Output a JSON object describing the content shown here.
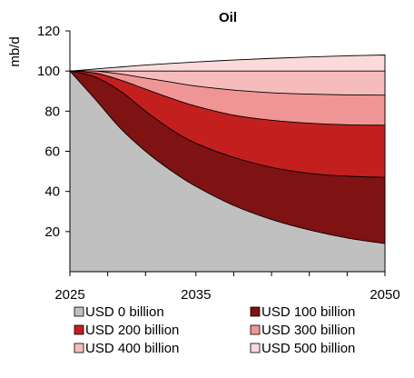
{
  "chart_data": {
    "type": "area",
    "title": "Oil",
    "ylabel": "mb/d",
    "xlabel": "",
    "x_ticks": [
      2025,
      2035,
      2050
    ],
    "x_minor_ticks": [
      2028,
      2031,
      2038,
      2041,
      2044,
      2047
    ],
    "xlim": [
      2025,
      2050
    ],
    "ylim": [
      0,
      120
    ],
    "y_ticks": [
      20,
      40,
      60,
      80,
      100,
      120
    ],
    "grid": false,
    "legend_placement": "bottom",
    "x": [
      2025,
      2027,
      2029,
      2031,
      2033,
      2035,
      2038,
      2041,
      2044,
      2047,
      2050
    ],
    "series": [
      {
        "name": "USD 0 billion",
        "color": "#c0c0c0",
        "values": [
          100,
          86,
          71.5,
          60,
          50.5,
          42.5,
          33,
          26,
          20.8,
          16.8,
          14
        ]
      },
      {
        "name": "USD 100 billion",
        "color": "#7f1313",
        "values": [
          100,
          97,
          90,
          80,
          71,
          64,
          57,
          52,
          49,
          47.6,
          47
        ]
      },
      {
        "name": "USD 200 billion",
        "color": "#c41f1f",
        "values": [
          100,
          99,
          95.5,
          91,
          86.5,
          82.5,
          78,
          75.5,
          74,
          73.2,
          73
        ]
      },
      {
        "name": "USD 300 billion",
        "color": "#f09595",
        "values": [
          100,
          100,
          98.5,
          96.5,
          94.5,
          92.5,
          90.5,
          89.2,
          88.5,
          88.1,
          88
        ]
      },
      {
        "name": "USD 400 billion",
        "color": "#f6bcbc",
        "values": [
          100,
          100,
          100,
          100,
          100,
          100,
          100,
          100,
          100,
          100,
          100
        ]
      },
      {
        "name": "USD 500 billion",
        "color": "#fbdada",
        "values": [
          100,
          101,
          102,
          103,
          103.8,
          104.5,
          105.5,
          106.3,
          107,
          107.6,
          108
        ]
      }
    ]
  }
}
